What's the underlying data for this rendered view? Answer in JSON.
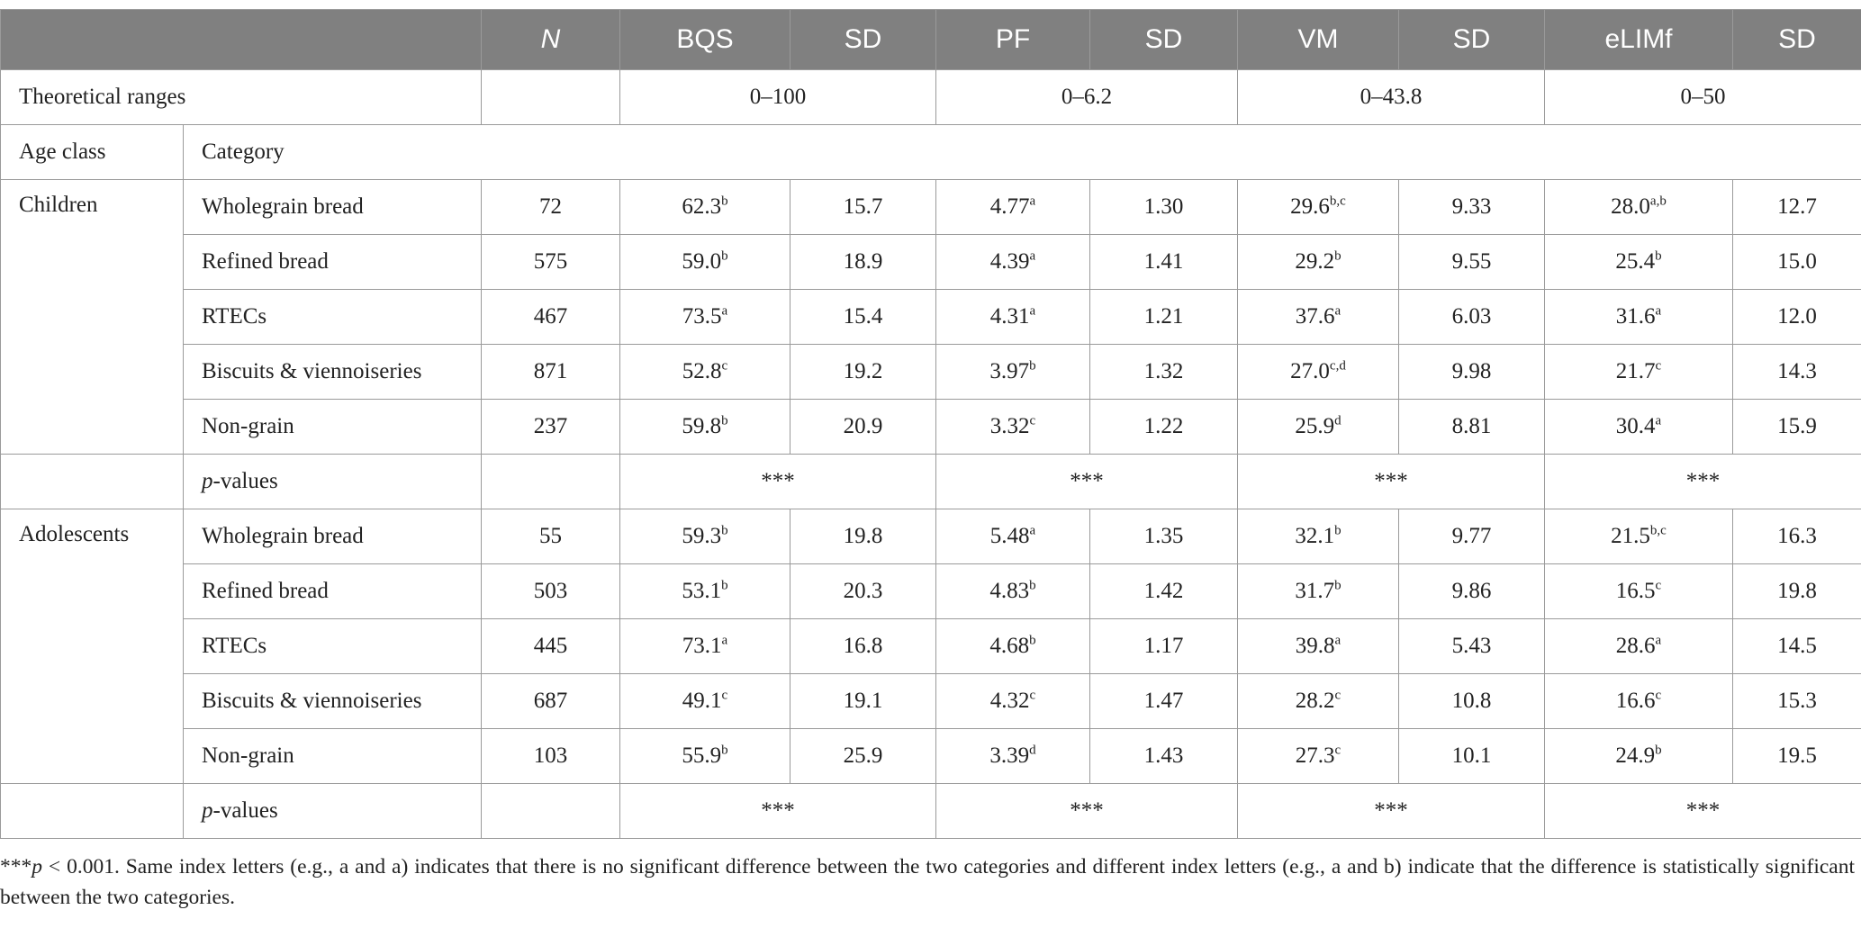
{
  "table": {
    "header": {
      "n": "N",
      "columns": [
        "BQS",
        "SD",
        "PF",
        "SD",
        "VM",
        "SD",
        "eLIMf",
        "SD"
      ]
    },
    "ranges": {
      "label": "Theoretical ranges",
      "values": [
        "0–100",
        "0–6.2",
        "0–43.8",
        "0–50"
      ]
    },
    "subheader": {
      "age_class": "Age class",
      "category": "Category"
    },
    "groups": [
      {
        "age_class": "Children",
        "rows": [
          {
            "category": "Wholegrain bread",
            "n": "72",
            "cells": [
              {
                "value": "62.3",
                "sup": "b"
              },
              {
                "value": "15.7"
              },
              {
                "value": "4.77",
                "sup": "a"
              },
              {
                "value": "1.30"
              },
              {
                "value": "29.6",
                "sup": "b,c"
              },
              {
                "value": "9.33"
              },
              {
                "value": "28.0",
                "sup": "a,b"
              },
              {
                "value": "12.7"
              }
            ]
          },
          {
            "category": "Refined bread",
            "n": "575",
            "cells": [
              {
                "value": "59.0",
                "sup": "b"
              },
              {
                "value": "18.9"
              },
              {
                "value": "4.39",
                "sup": "a"
              },
              {
                "value": "1.41"
              },
              {
                "value": "29.2",
                "sup": "b"
              },
              {
                "value": "9.55"
              },
              {
                "value": "25.4",
                "sup": "b"
              },
              {
                "value": "15.0"
              }
            ]
          },
          {
            "category": "RTECs",
            "n": "467",
            "cells": [
              {
                "value": "73.5",
                "sup": "a"
              },
              {
                "value": "15.4"
              },
              {
                "value": "4.31",
                "sup": "a"
              },
              {
                "value": "1.21"
              },
              {
                "value": "37.6",
                "sup": "a"
              },
              {
                "value": "6.03"
              },
              {
                "value": "31.6",
                "sup": "a"
              },
              {
                "value": "12.0"
              }
            ]
          },
          {
            "category": "Biscuits & viennoiseries",
            "n": "871",
            "cells": [
              {
                "value": "52.8",
                "sup": "c"
              },
              {
                "value": "19.2"
              },
              {
                "value": "3.97",
                "sup": "b"
              },
              {
                "value": "1.32"
              },
              {
                "value": "27.0",
                "sup": "c,d"
              },
              {
                "value": "9.98"
              },
              {
                "value": "21.7",
                "sup": "c"
              },
              {
                "value": "14.3"
              }
            ]
          },
          {
            "category": "Non-grain",
            "n": "237",
            "cells": [
              {
                "value": "59.8",
                "sup": "b"
              },
              {
                "value": "20.9"
              },
              {
                "value": "3.32",
                "sup": "c"
              },
              {
                "value": "1.22"
              },
              {
                "value": "25.9",
                "sup": "d"
              },
              {
                "value": "8.81"
              },
              {
                "value": "30.4",
                "sup": "a"
              },
              {
                "value": "15.9"
              }
            ]
          }
        ],
        "p_values": {
          "italic": "p",
          "rest": "-values",
          "values": [
            "***",
            "***",
            "***",
            "***"
          ]
        }
      },
      {
        "age_class": "Adolescents",
        "rows": [
          {
            "category": "Wholegrain bread",
            "n": "55",
            "cells": [
              {
                "value": "59.3",
                "sup": "b"
              },
              {
                "value": "19.8"
              },
              {
                "value": "5.48",
                "sup": "a"
              },
              {
                "value": "1.35"
              },
              {
                "value": "32.1",
                "sup": "b"
              },
              {
                "value": "9.77"
              },
              {
                "value": "21.5",
                "sup": "b,c"
              },
              {
                "value": "16.3"
              }
            ]
          },
          {
            "category": "Refined bread",
            "n": "503",
            "cells": [
              {
                "value": "53.1",
                "sup": "b"
              },
              {
                "value": "20.3"
              },
              {
                "value": "4.83",
                "sup": "b"
              },
              {
                "value": "1.42"
              },
              {
                "value": "31.7",
                "sup": "b"
              },
              {
                "value": "9.86"
              },
              {
                "value": "16.5",
                "sup": "c"
              },
              {
                "value": "19.8"
              }
            ]
          },
          {
            "category": "RTECs",
            "n": "445",
            "cells": [
              {
                "value": "73.1",
                "sup": "a"
              },
              {
                "value": "16.8"
              },
              {
                "value": "4.68",
                "sup": "b"
              },
              {
                "value": "1.17"
              },
              {
                "value": "39.8",
                "sup": "a"
              },
              {
                "value": "5.43"
              },
              {
                "value": "28.6",
                "sup": "a"
              },
              {
                "value": "14.5"
              }
            ]
          },
          {
            "category": "Biscuits & viennoiseries",
            "n": "687",
            "cells": [
              {
                "value": "49.1",
                "sup": "c"
              },
              {
                "value": "19.1"
              },
              {
                "value": "4.32",
                "sup": "c"
              },
              {
                "value": "1.47"
              },
              {
                "value": "28.2",
                "sup": "c"
              },
              {
                "value": "10.8"
              },
              {
                "value": "16.6",
                "sup": "c"
              },
              {
                "value": "15.3"
              }
            ]
          },
          {
            "category": "Non-grain",
            "n": "103",
            "cells": [
              {
                "value": "55.9",
                "sup": "b"
              },
              {
                "value": "25.9"
              },
              {
                "value": "3.39",
                "sup": "d"
              },
              {
                "value": "1.43"
              },
              {
                "value": "27.3",
                "sup": "c"
              },
              {
                "value": "10.1"
              },
              {
                "value": "24.9",
                "sup": "b"
              },
              {
                "value": "19.5"
              }
            ]
          }
        ],
        "p_values": {
          "italic": "p",
          "rest": "-values",
          "values": [
            "***",
            "***",
            "***",
            "***"
          ]
        }
      }
    ],
    "footnote": {
      "stars": "***",
      "italic": "p",
      "rest": " < 0.001. Same index letters (e.g., a and a) indicates that there is no significant difference between the two categories and different index letters (e.g., a and b) indicate that the difference is statistically significant between the two categories."
    }
  }
}
